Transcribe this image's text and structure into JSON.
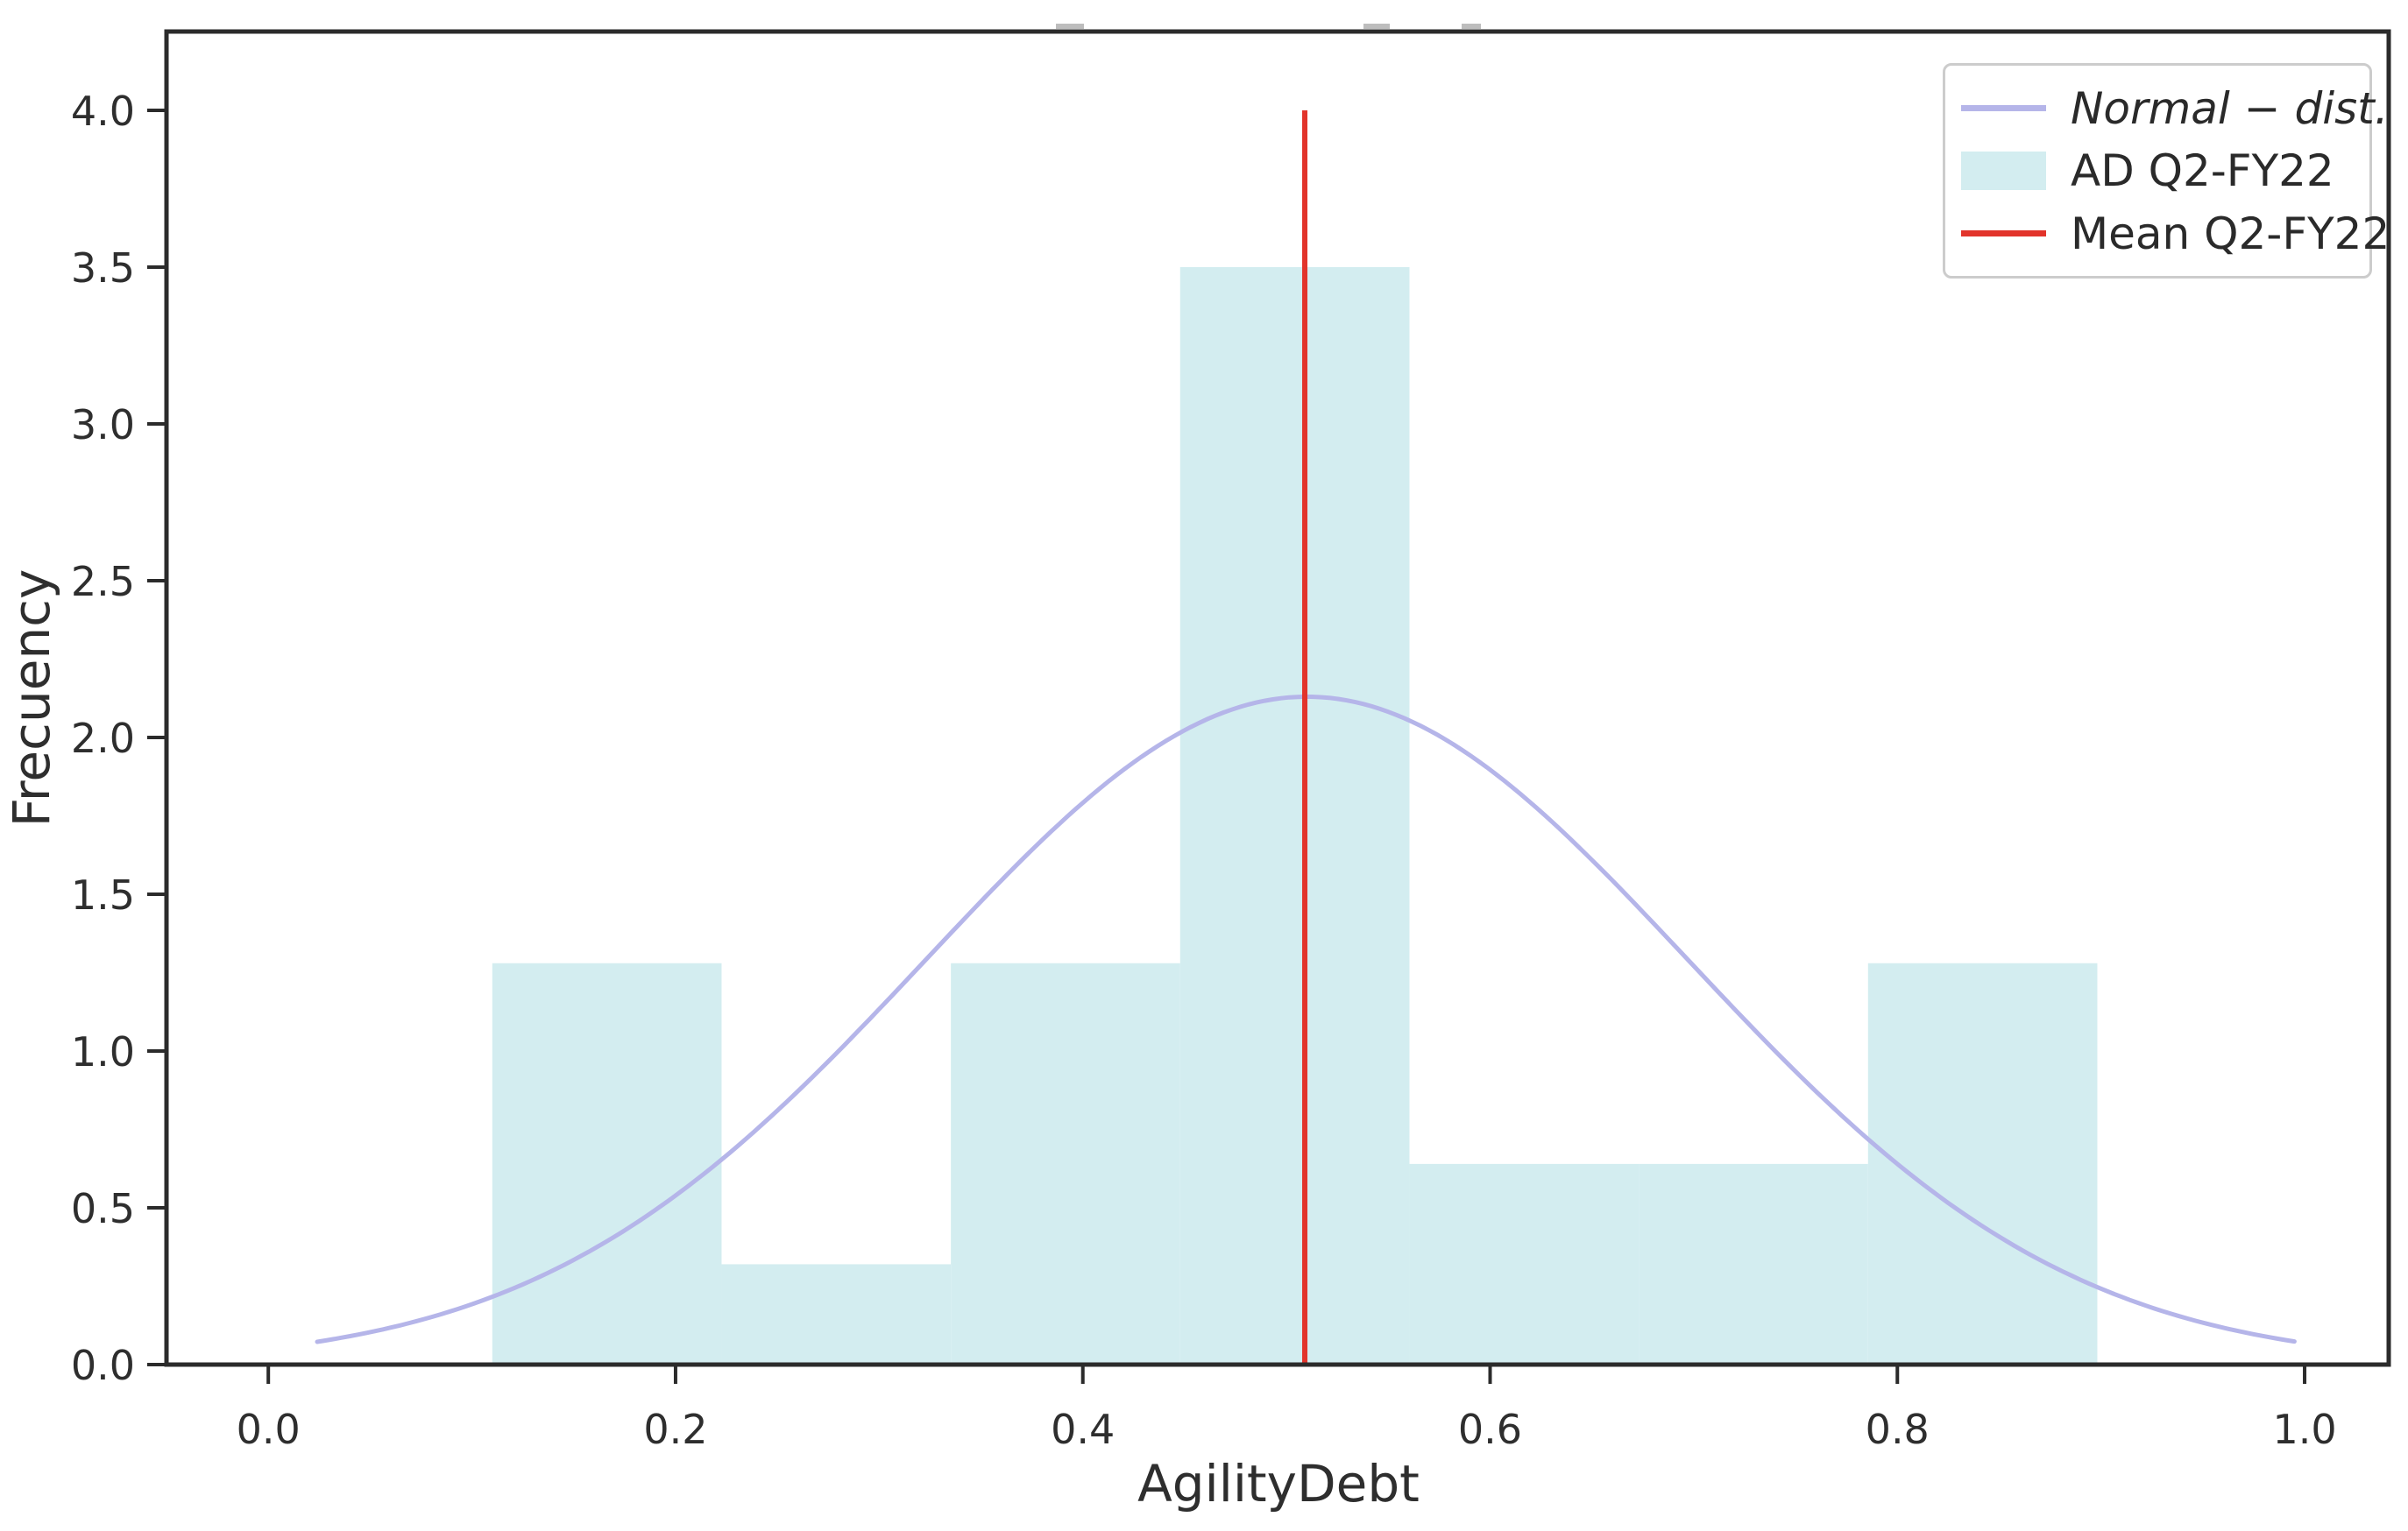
{
  "figure": {
    "xlabel": "AgilityDebt",
    "ylabel": "Frecuency"
  },
  "legend": {
    "items": [
      {
        "label": "Normal − dist.",
        "type": "line",
        "color": "#b5b5e9",
        "italic": true
      },
      {
        "label": "AD Q2-FY22",
        "type": "patch",
        "color": "#d3edf0",
        "italic": false
      },
      {
        "label": "Mean Q2-FY22",
        "type": "line",
        "color": "#e2342b",
        "italic": false
      }
    ]
  },
  "chart_data": {
    "type": "histogram",
    "title": "",
    "xlabel": "AgilityDebt",
    "ylabel": "Frecuency",
    "xlim": [
      -0.05,
      1.0413
    ],
    "ylim": [
      0,
      4.2513
    ],
    "x_ticks": [
      0.0,
      0.2,
      0.4,
      0.6,
      0.8,
      1.0
    ],
    "y_ticks": [
      0.0,
      0.5,
      1.0,
      1.5,
      2.0,
      2.5,
      3.0,
      3.5,
      4.0
    ],
    "grid": false,
    "legend_position": "upper right",
    "histogram": {
      "name": "AD Q2-FY22",
      "color": "#d3edf0",
      "bin_width": 0.1126,
      "bin_edges": [
        0.11,
        0.2226,
        0.3352,
        0.4478,
        0.5604,
        0.673,
        0.7856,
        0.8982
      ],
      "densities": [
        1.28,
        0.32,
        1.28,
        3.5,
        0.64,
        0.64,
        1.28
      ]
    },
    "normal_fit": {
      "name": "Normal − dist.",
      "color": "#b5b5e9",
      "mean": 0.51,
      "sigma": 0.187,
      "peak": 2.13,
      "x_start": 0.024,
      "x_end": 0.995
    },
    "mean_line": {
      "name": "Mean Q2-FY22",
      "color": "#e2342b",
      "x": 0.509,
      "y_top": 4.0
    },
    "style": {
      "spine_color": "#2b2b2b",
      "tick_color": "#2b2b2b",
      "text_color": "#2e2e2e",
      "background": "#ffffff"
    }
  }
}
